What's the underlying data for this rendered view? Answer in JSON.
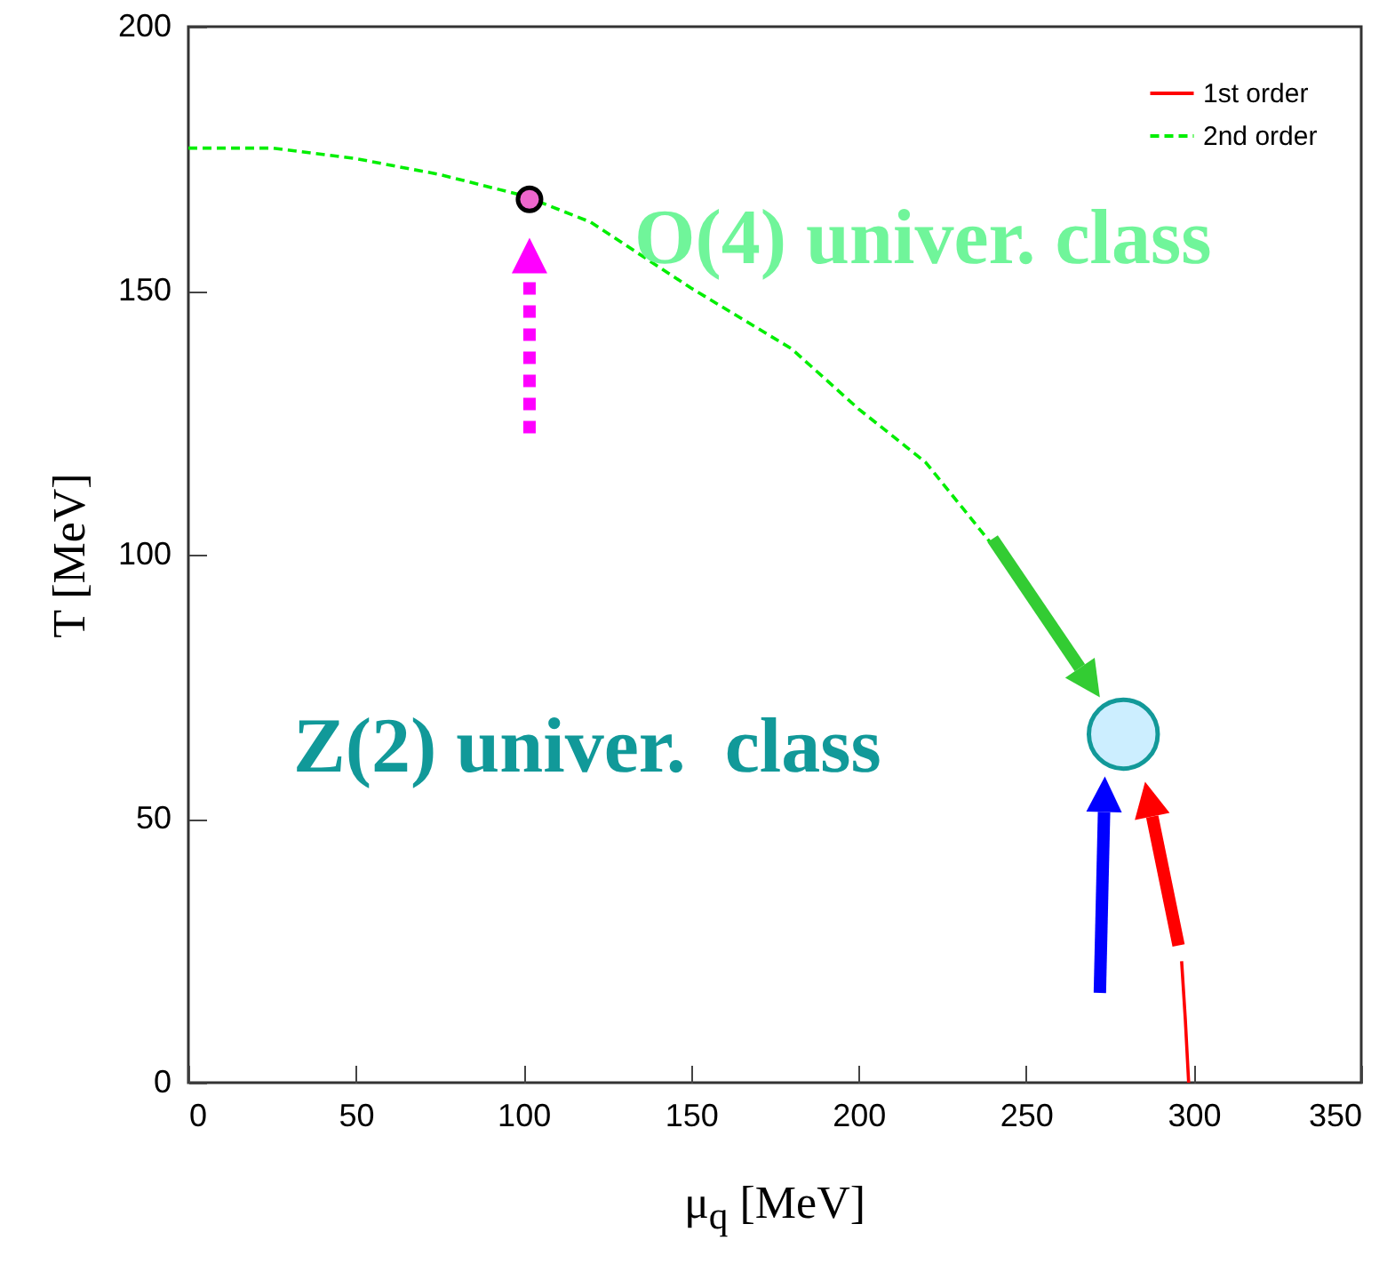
{
  "chart_data": {
    "type": "line",
    "xlabel": "μ$_{q}$ [MeV]",
    "ylabel": "T [MeV]",
    "xlim": [
      0,
      350
    ],
    "xticks": [
      0,
      50,
      100,
      150,
      200,
      250,
      300,
      350
    ],
    "ylim": [
      0,
      200
    ],
    "yticks": [
      0,
      50,
      100,
      150,
      200
    ],
    "legend": "top right",
    "grid": false,
    "series": [
      {
        "name": "1st order",
        "type": "line",
        "color": "#ff0000",
        "line_style": "solid",
        "x": [
          296.4,
          297.5,
          298.5
        ],
        "values": [
          23,
          12,
          0
        ]
      },
      {
        "name": "2nd order",
        "type": "line",
        "color": "#00ee00",
        "line_style": "dashed",
        "x": [
          0,
          25,
          50,
          75,
          100,
          120,
          150,
          180,
          200,
          220,
          241
        ],
        "values": [
          177,
          177,
          175,
          172,
          168,
          163,
          150.5,
          139,
          127.6,
          117.5,
          101
        ]
      },
      {
        "type": "scatter",
        "color": "#ee66cc",
        "marker": "circle",
        "x": [
          101.8
        ],
        "values": [
          167.3
        ]
      },
      {
        "type": "scatter",
        "color": "#cceeff",
        "marker": "circle",
        "x": [
          279
        ],
        "values": [
          66
        ]
      }
    ],
    "annotations": [
      "O(4) univer. class",
      "Z(2) univer.  class"
    ]
  }
}
